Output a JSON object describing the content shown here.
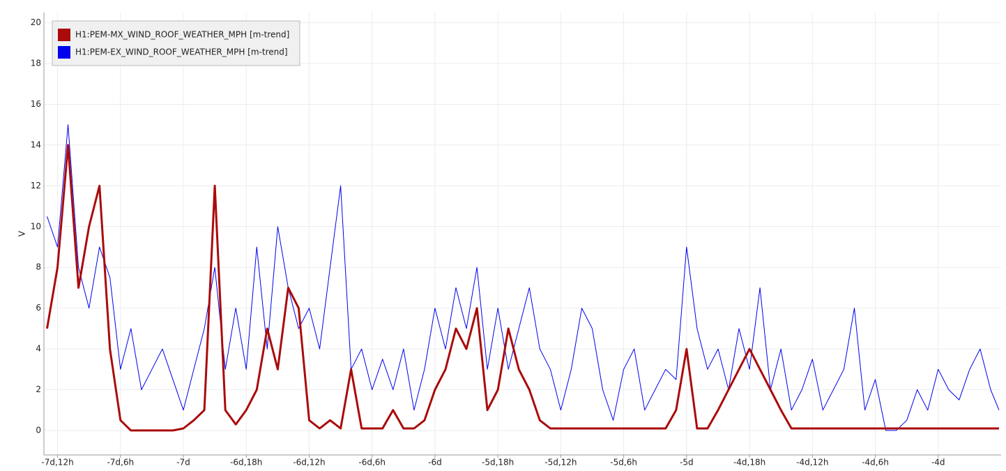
{
  "chart_data": {
    "type": "line",
    "ylabel": "V",
    "ylim": [
      -1.2,
      20.5
    ],
    "yticks": [
      0,
      2,
      4,
      6,
      8,
      10,
      12,
      14,
      16,
      18,
      20
    ],
    "xlim": [
      -181.3,
      -90
    ],
    "xticks": [
      {
        "value": -180,
        "label": "-7d,12h"
      },
      {
        "value": -174,
        "label": "-7d,6h"
      },
      {
        "value": -168,
        "label": "-7d"
      },
      {
        "value": -162,
        "label": "-6d,18h"
      },
      {
        "value": -156,
        "label": "-6d,12h"
      },
      {
        "value": -150,
        "label": "-6d,6h"
      },
      {
        "value": -144,
        "label": "-6d"
      },
      {
        "value": -138,
        "label": "-5d,18h"
      },
      {
        "value": -132,
        "label": "-5d,12h"
      },
      {
        "value": -126,
        "label": "-5d,6h"
      },
      {
        "value": -120,
        "label": "-5d"
      },
      {
        "value": -114,
        "label": "-4d,18h"
      },
      {
        "value": -108,
        "label": "-4d,12h"
      },
      {
        "value": -102,
        "label": "-4d,6h"
      },
      {
        "value": -96,
        "label": "-4d"
      }
    ],
    "grid": true,
    "legend": "upper left",
    "x": [
      -181,
      -180,
      -179,
      -178,
      -177,
      -176,
      -175,
      -174,
      -173,
      -172,
      -171,
      -170,
      -169,
      -168,
      -167,
      -166,
      -165,
      -164,
      -163,
      -162,
      -161,
      -160,
      -159,
      -158,
      -157,
      -156,
      -155,
      -154,
      -153,
      -152,
      -151,
      -150,
      -149,
      -148,
      -147,
      -146,
      -145,
      -144,
      -143,
      -142,
      -141,
      -140,
      -139,
      -138,
      -137,
      -136,
      -135,
      -134,
      -133,
      -132,
      -131,
      -130,
      -129,
      -128,
      -127,
      -126,
      -125,
      -124,
      -123,
      -122,
      -121,
      -120,
      -119,
      -118,
      -117,
      -116,
      -115,
      -114,
      -113,
      -112,
      -111,
      -110,
      -109,
      -108,
      -107,
      -106,
      -105,
      -104,
      -103,
      -102,
      -101,
      -100,
      -99,
      -98,
      -97,
      -96,
      -95,
      -94,
      -93,
      -92,
      -91,
      -90.2
    ],
    "series": [
      {
        "name": "H1:PEM-EX_WIND_ROOF_WEATHER_MPH [m-trend]",
        "color": "#0000ee",
        "values": [
          10.5,
          9,
          15,
          8,
          6,
          9,
          7.5,
          3,
          5,
          2,
          3,
          4,
          2.5,
          1,
          3,
          5,
          8,
          3,
          6,
          3,
          9,
          4,
          10,
          7,
          5,
          6,
          4,
          8,
          12,
          3,
          4,
          2,
          3.5,
          2,
          4,
          1,
          3,
          6,
          4,
          7,
          5,
          8,
          3,
          6,
          3,
          5,
          7,
          4,
          3,
          1,
          3,
          6,
          5,
          2,
          0.5,
          3,
          4,
          1,
          2,
          3,
          2.5,
          9,
          5,
          3,
          4,
          2,
          5,
          3,
          7,
          2,
          4,
          1,
          2,
          3.5,
          1,
          2,
          3,
          6,
          1,
          2.5,
          0,
          0,
          0.5,
          2,
          1,
          3,
          2,
          1.5,
          3,
          4,
          2,
          1
        ]
      },
      {
        "name": "H1:PEM-MX_WIND_ROOF_WEATHER_MPH [m-trend]",
        "color": "#aa0a0a",
        "values": [
          5,
          8,
          14,
          7,
          10,
          12,
          4,
          0.5,
          0,
          0,
          0,
          0,
          0,
          0.1,
          0.5,
          1,
          12,
          1,
          0.3,
          1,
          2,
          5,
          3,
          7,
          6,
          0.5,
          0.1,
          0.5,
          0.1,
          3,
          0.1,
          0.1,
          0.1,
          1,
          0.1,
          0.1,
          0.5,
          2,
          3,
          5,
          4,
          6,
          1,
          2,
          5,
          3,
          2,
          0.5,
          0.1,
          0.1,
          0.1,
          0.1,
          0.1,
          0.1,
          0.1,
          0.1,
          0.1,
          0.1,
          0.1,
          0.1,
          1,
          4,
          0.1,
          0.1,
          1,
          2,
          3,
          4,
          3,
          2,
          1,
          0.1,
          0.1,
          0.1,
          0.1,
          0.1,
          0.1,
          0.1,
          0.1,
          0.1,
          0.1,
          0.1,
          0.1,
          0.1,
          0.1,
          0.1,
          0.1,
          0.1,
          0.1,
          0.1,
          0.1,
          0.1
        ]
      }
    ]
  }
}
